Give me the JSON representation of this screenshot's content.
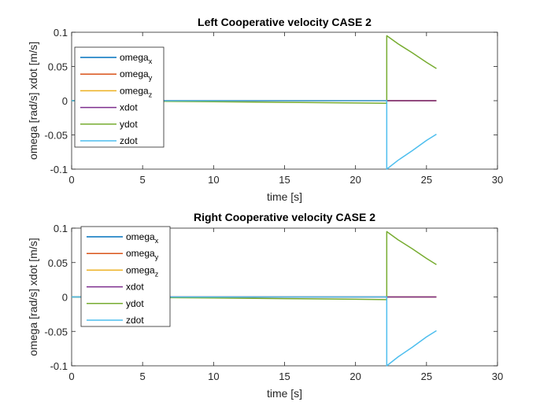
{
  "chart_data": [
    {
      "type": "line",
      "title": "Left Cooperative velocity CASE 2",
      "xlabel": "time [s]",
      "ylabel": "omega [rad/s] xdot [m/s]",
      "xlim": [
        0,
        30
      ],
      "ylim": [
        -0.1,
        0.1
      ],
      "xticks": [
        "0",
        "5",
        "10",
        "15",
        "20",
        "25",
        "30"
      ],
      "yticks": [
        "-0.1",
        "-0.05",
        "0",
        "0.05",
        "0.1"
      ],
      "legend_position": "top-left",
      "grid": false,
      "series": [
        {
          "name": "omega",
          "subscript": "x",
          "color": "#0072BD",
          "x": [
            0,
            22.2,
            22.2,
            25.7
          ],
          "y": [
            0,
            0,
            0,
            0
          ]
        },
        {
          "name": "omega",
          "subscript": "y",
          "color": "#D95319",
          "x": [
            0,
            22.2,
            22.2,
            25.7
          ],
          "y": [
            0,
            0,
            0,
            0
          ]
        },
        {
          "name": "omega",
          "subscript": "z",
          "color": "#EDB120",
          "x": [
            0,
            22.2,
            22.2,
            25.7
          ],
          "y": [
            0,
            0,
            0,
            0
          ]
        },
        {
          "name": "xdot",
          "subscript": "",
          "color": "#7E2F8E",
          "x": [
            0,
            22.2,
            22.2,
            25.7
          ],
          "y": [
            0,
            0,
            0,
            0
          ]
        },
        {
          "name": "ydot",
          "subscript": "",
          "color": "#77AC30",
          "x": [
            0,
            5,
            10,
            15,
            20,
            22.2,
            22.2,
            23,
            24,
            25,
            25.7
          ],
          "y": [
            0,
            -0.0007,
            -0.0015,
            -0.0024,
            -0.0033,
            -0.0038,
            0.095,
            0.083,
            0.07,
            0.056,
            0.047
          ]
        },
        {
          "name": "zdot",
          "subscript": "",
          "color": "#4DBEEE",
          "x": [
            0,
            5,
            10,
            15,
            20,
            22.2,
            22.2,
            23,
            24,
            25,
            25.7
          ],
          "y": [
            0,
            0,
            0,
            0,
            0,
            0,
            -0.1,
            -0.087,
            -0.073,
            -0.058,
            -0.049
          ]
        }
      ]
    },
    {
      "type": "line",
      "title": "Right Cooperative velocity CASE 2",
      "xlabel": "time [s]",
      "ylabel": "omega [rad/s] xdot [m/s]",
      "xlim": [
        0,
        30
      ],
      "ylim": [
        -0.1,
        0.1
      ],
      "xticks": [
        "0",
        "5",
        "10",
        "15",
        "20",
        "25",
        "30"
      ],
      "yticks": [
        "-0.1",
        "-0.05",
        "0",
        "0.05",
        "0.1"
      ],
      "legend_position": "top-left",
      "grid": false,
      "series": [
        {
          "name": "omega",
          "subscript": "x",
          "color": "#0072BD",
          "x": [
            0,
            22.2,
            22.2,
            25.7
          ],
          "y": [
            0,
            0,
            0,
            0
          ]
        },
        {
          "name": "omega",
          "subscript": "y",
          "color": "#D95319",
          "x": [
            0,
            22.2,
            22.2,
            25.7
          ],
          "y": [
            0,
            0,
            0,
            0
          ]
        },
        {
          "name": "omega",
          "subscript": "z",
          "color": "#EDB120",
          "x": [
            0,
            22.2,
            22.2,
            25.7
          ],
          "y": [
            0,
            0,
            0,
            0
          ]
        },
        {
          "name": "xdot",
          "subscript": "",
          "color": "#7E2F8E",
          "x": [
            0,
            22.2,
            22.2,
            25.7
          ],
          "y": [
            0,
            0,
            0,
            0
          ]
        },
        {
          "name": "ydot",
          "subscript": "",
          "color": "#77AC30",
          "x": [
            0,
            5,
            10,
            15,
            20,
            22.2,
            22.2,
            23,
            24,
            25,
            25.7
          ],
          "y": [
            0,
            -0.0007,
            -0.0015,
            -0.0024,
            -0.0033,
            -0.0038,
            0.095,
            0.083,
            0.07,
            0.056,
            0.047
          ]
        },
        {
          "name": "zdot",
          "subscript": "",
          "color": "#4DBEEE",
          "x": [
            0,
            5,
            10,
            15,
            20,
            22.2,
            22.2,
            23,
            24,
            25,
            25.7
          ],
          "y": [
            0,
            0,
            0,
            0,
            0,
            0,
            -0.1,
            -0.087,
            -0.073,
            -0.058,
            -0.049
          ]
        }
      ]
    }
  ]
}
